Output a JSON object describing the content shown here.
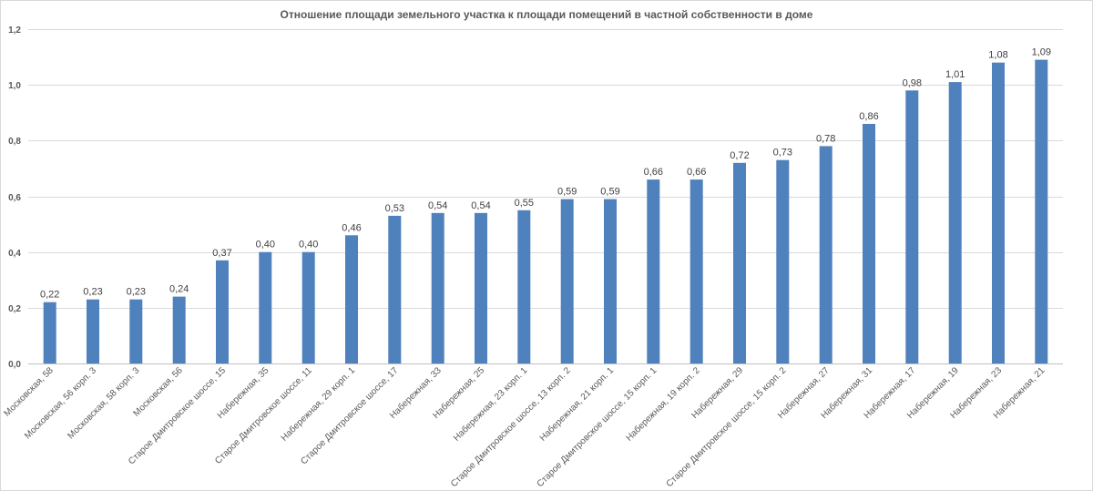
{
  "chart_data": {
    "type": "bar",
    "title": "Отношение площади земельного участка к площади помещений в частной собственности в доме",
    "xlabel": "",
    "ylabel": "",
    "ylim": [
      0,
      1.2
    ],
    "ytick_values": [
      0,
      0.2,
      0.4,
      0.6,
      0.8,
      1.0,
      1.2
    ],
    "ytick_labels": [
      "0,0",
      "0,2",
      "0,4",
      "0,6",
      "0,8",
      "1,0",
      "1,2"
    ],
    "grid": true,
    "bar_color": "#4f81bd",
    "categories": [
      "Московская, 58",
      "Московская, 56 корп. 3",
      "Московская, 58 корп. 3",
      "Московская, 56",
      "Старое Дмитровское шоссе, 15",
      "Набережная, 35",
      "Старое Дмитровское шоссе, 11",
      "Набережная, 29 корп. 1",
      "Старое Дмитровское шоссе, 17",
      "Набережная, 33",
      "Набережная, 25",
      "Набережная, 23 корп. 1",
      "Старое Дмитровское шоссе, 13 корп. 2",
      "Набережная, 21 корп. 1",
      "Старое Дмитровское шоссе, 15 корп. 1",
      "Набережная, 19 корп. 2",
      "Набережная, 29",
      "Старое Дмитровское шоссе, 15 корп. 2",
      "Набережная, 27",
      "Набережная, 31",
      "Набережная, 17",
      "Набережная, 19",
      "Набережная, 23",
      "Набережная, 21"
    ],
    "values": [
      0.22,
      0.23,
      0.23,
      0.24,
      0.37,
      0.4,
      0.4,
      0.46,
      0.53,
      0.54,
      0.54,
      0.55,
      0.59,
      0.59,
      0.66,
      0.66,
      0.72,
      0.73,
      0.78,
      0.86,
      0.98,
      1.01,
      1.08,
      1.09
    ],
    "value_labels": [
      "0,22",
      "0,23",
      "0,23",
      "0,24",
      "0,37",
      "0,40",
      "0,40",
      "0,46",
      "0,53",
      "0,54",
      "0,54",
      "0,55",
      "0,59",
      "0,59",
      "0,66",
      "0,66",
      "0,72",
      "0,73",
      "0,78",
      "0,86",
      "0,98",
      "1,01",
      "1,08",
      "1,09"
    ]
  }
}
